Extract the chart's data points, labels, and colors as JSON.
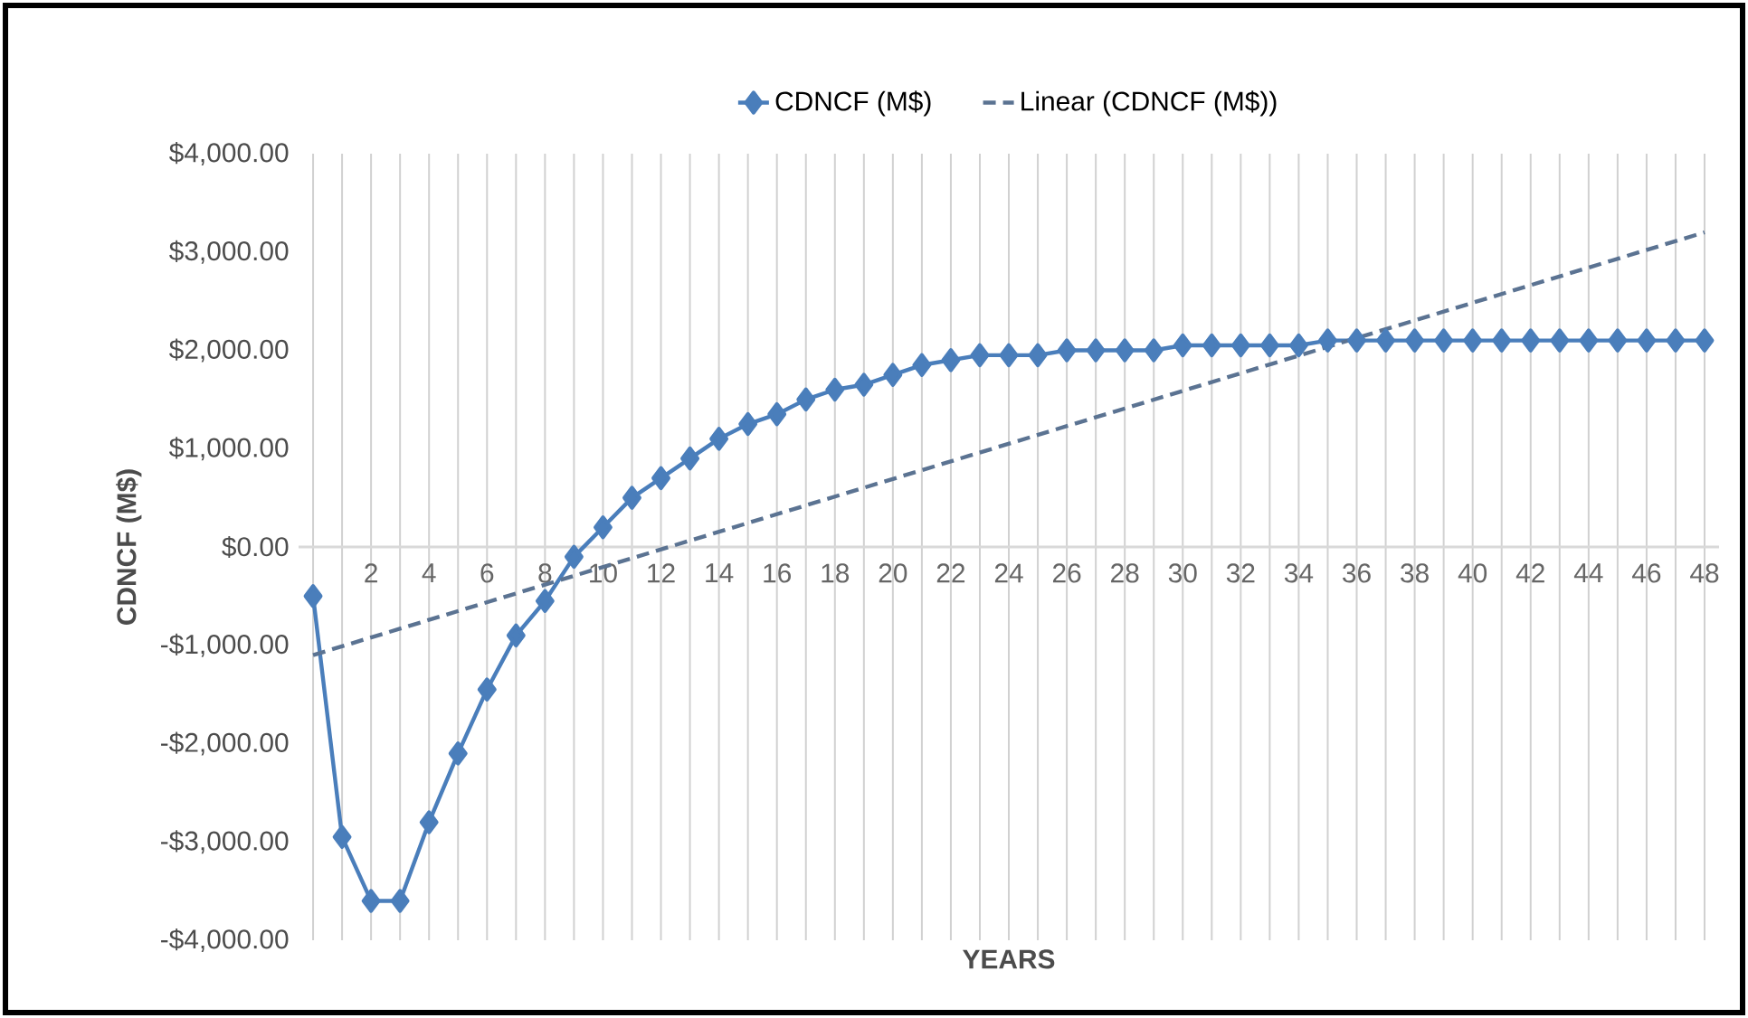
{
  "chart_data": {
    "type": "line",
    "xlabel": "YEARS",
    "ylabel": "CDNCF  (M$)",
    "categories": [
      null,
      null,
      "2",
      null,
      "4",
      null,
      "6",
      null,
      "8",
      null,
      "10",
      null,
      "12",
      null,
      "14",
      null,
      "16",
      null,
      "18",
      null,
      "20",
      null,
      "22",
      null,
      "24",
      null,
      "26",
      null,
      "28",
      null,
      "30",
      null,
      "32",
      null,
      "34",
      null,
      "36",
      null,
      "38",
      null,
      "40",
      null,
      "42",
      null,
      "44",
      null,
      "46",
      null,
      "48"
    ],
    "series": [
      {
        "name": "CDNCF (M$)",
        "color": "#4a7ebb",
        "marker": "diamond",
        "line_style": "solid",
        "values": [
          -500,
          -2950,
          -3600,
          -3600,
          -2800,
          -2100,
          -1450,
          -900,
          -550,
          -100,
          200,
          500,
          700,
          900,
          1100,
          1250,
          1350,
          1500,
          1600,
          1650,
          1750,
          1850,
          1900,
          1950,
          1950,
          1950,
          2000,
          2000,
          2000,
          2000,
          2050,
          2050,
          2050,
          2050,
          2050,
          2100,
          2100,
          2100,
          2100,
          2100,
          2100,
          2100,
          2100,
          2100,
          2100,
          2100,
          2100,
          2100,
          2100
        ]
      },
      {
        "name": "Linear (CDNCF (M$))",
        "type": "line",
        "color": "#5b7392",
        "marker": "none",
        "line_style": "dashed",
        "values": [
          -1100,
          null,
          null,
          null,
          null,
          null,
          null,
          null,
          null,
          null,
          null,
          null,
          null,
          null,
          null,
          null,
          null,
          null,
          null,
          null,
          null,
          null,
          null,
          null,
          null,
          null,
          null,
          null,
          null,
          null,
          null,
          null,
          null,
          null,
          null,
          null,
          null,
          null,
          null,
          null,
          null,
          null,
          null,
          null,
          null,
          null,
          null,
          null,
          3200
        ]
      }
    ],
    "ylim": [
      -4000,
      4000
    ],
    "yticks": [
      {
        "value": -4000,
        "label": "-$4,000.00"
      },
      {
        "value": -3000,
        "label": "-$3,000.00"
      },
      {
        "value": -2000,
        "label": "-$2,000.00"
      },
      {
        "value": -1000,
        "label": "-$1,000.00"
      },
      {
        "value": 0,
        "label": "$0.00"
      },
      {
        "value": 1000,
        "label": "$1,000.00"
      },
      {
        "value": 2000,
        "label": "$2,000.00"
      },
      {
        "value": 3000,
        "label": "$3,000.00"
      },
      {
        "value": 4000,
        "label": "$4,000.00"
      }
    ],
    "grid": "x",
    "legend": "top"
  }
}
